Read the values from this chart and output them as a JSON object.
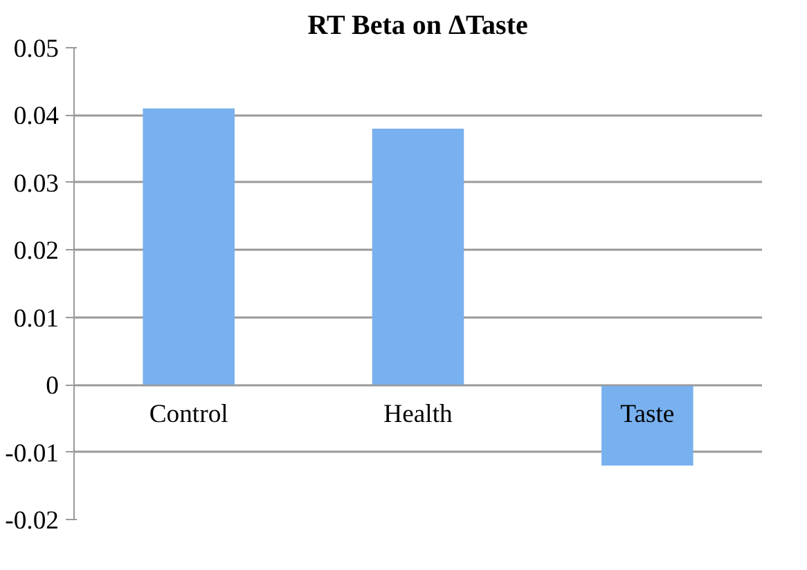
{
  "chart_data": {
    "type": "bar",
    "title": "RT Beta on ΔTaste",
    "categories": [
      "Control",
      "Health",
      "Taste"
    ],
    "values": [
      0.041,
      0.038,
      -0.012
    ],
    "color": "#79b0ef",
    "ylim": [
      -0.02,
      0.05
    ],
    "yticks": [
      -0.02,
      -0.01,
      0,
      0.01,
      0.02,
      0.03,
      0.04,
      0.05
    ],
    "grid": "y"
  }
}
